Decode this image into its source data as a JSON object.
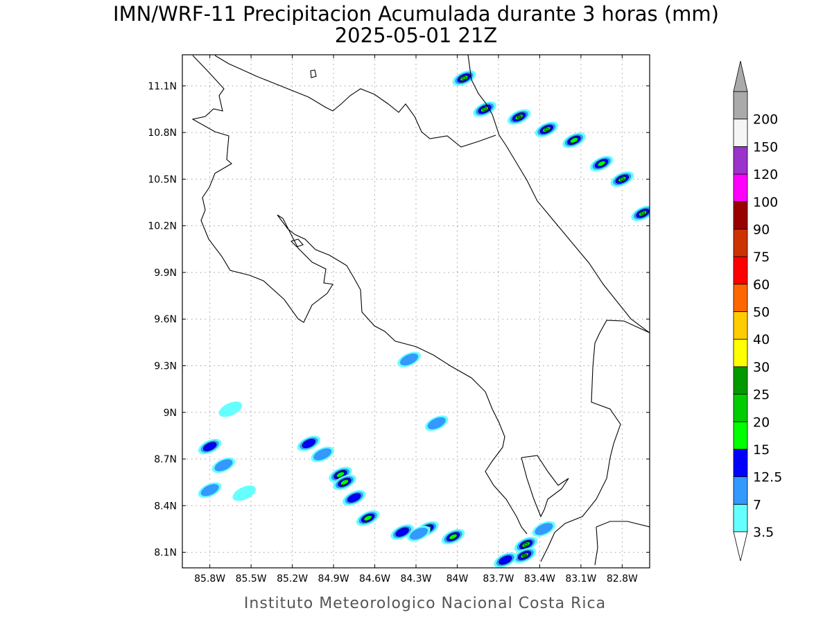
{
  "title": {
    "line1": "IMN/WRF-11 Precipitacion Acumulada durante 3 horas (mm)",
    "line2": "2025-05-01 21Z"
  },
  "footer": "Instituto Meteorologico Nacional Costa Rica",
  "map": {
    "lon_range": [
      -86.0,
      -82.6
    ],
    "lat_range": [
      8.0,
      11.3
    ],
    "lon_ticks": [
      {
        "value": -85.8,
        "label": "85.8W"
      },
      {
        "value": -85.5,
        "label": "85.5W"
      },
      {
        "value": -85.2,
        "label": "85.2W"
      },
      {
        "value": -84.9,
        "label": "84.9W"
      },
      {
        "value": -84.6,
        "label": "84.6W"
      },
      {
        "value": -84.3,
        "label": "84.3W"
      },
      {
        "value": -84.0,
        "label": "84W"
      },
      {
        "value": -83.7,
        "label": "83.7W"
      },
      {
        "value": -83.4,
        "label": "83.4W"
      },
      {
        "value": -83.1,
        "label": "83.1W"
      },
      {
        "value": -82.8,
        "label": "82.8W"
      }
    ],
    "lat_ticks": [
      {
        "value": 11.1,
        "label": "11.1N"
      },
      {
        "value": 10.8,
        "label": "10.8N"
      },
      {
        "value": 10.5,
        "label": "10.5N"
      },
      {
        "value": 10.2,
        "label": "10.2N"
      },
      {
        "value": 9.9,
        "label": "9.9N"
      },
      {
        "value": 9.6,
        "label": "9.6N"
      },
      {
        "value": 9.3,
        "label": "9.3N"
      },
      {
        "value": 9.0,
        "label": "9N"
      },
      {
        "value": 8.7,
        "label": "8.7N"
      },
      {
        "value": 8.4,
        "label": "8.4N"
      },
      {
        "value": 8.1,
        "label": "8.1N"
      }
    ],
    "grid": true
  },
  "legend": {
    "units": "mm",
    "levels": [
      {
        "label": "3.5",
        "color": "#66ffff"
      },
      {
        "label": "7",
        "color": "#3399ff"
      },
      {
        "label": "12.5",
        "color": "#0000ff"
      },
      {
        "label": "15",
        "color": "#00ff00"
      },
      {
        "label": "20",
        "color": "#00cc00"
      },
      {
        "label": "25",
        "color": "#009900"
      },
      {
        "label": "30",
        "color": "#ffff00"
      },
      {
        "label": "40",
        "color": "#ffcc00"
      },
      {
        "label": "50",
        "color": "#ff6600"
      },
      {
        "label": "60",
        "color": "#ff0000"
      },
      {
        "label": "75",
        "color": "#cc3300"
      },
      {
        "label": "90",
        "color": "#990000"
      },
      {
        "label": "100",
        "color": "#ff00ff"
      },
      {
        "label": "120",
        "color": "#9933cc"
      },
      {
        "label": "150",
        "color": "#f5f5f5"
      },
      {
        "label": "200",
        "color": "#aaaaaa"
      }
    ]
  },
  "precip_cells": [
    {
      "lon": -83.95,
      "lat": 11.15,
      "category": 4
    },
    {
      "lon": -83.8,
      "lat": 10.95,
      "category": 4
    },
    {
      "lon": -83.55,
      "lat": 10.9,
      "category": 5
    },
    {
      "lon": -83.35,
      "lat": 10.82,
      "category": 4
    },
    {
      "lon": -83.15,
      "lat": 10.75,
      "category": 3
    },
    {
      "lon": -82.95,
      "lat": 10.6,
      "category": 3
    },
    {
      "lon": -82.8,
      "lat": 10.5,
      "category": 4
    },
    {
      "lon": -82.65,
      "lat": 10.28,
      "category": 4
    },
    {
      "lon": -85.8,
      "lat": 8.78,
      "category": 2
    },
    {
      "lon": -85.7,
      "lat": 8.66,
      "category": 1
    },
    {
      "lon": -85.8,
      "lat": 8.5,
      "category": 1
    },
    {
      "lon": -85.55,
      "lat": 8.48,
      "category": 0
    },
    {
      "lon": -85.08,
      "lat": 8.8,
      "category": 2
    },
    {
      "lon": -84.98,
      "lat": 8.73,
      "category": 1
    },
    {
      "lon": -84.85,
      "lat": 8.6,
      "category": 3
    },
    {
      "lon": -84.82,
      "lat": 8.55,
      "category": 3
    },
    {
      "lon": -84.75,
      "lat": 8.45,
      "category": 2
    },
    {
      "lon": -84.65,
      "lat": 8.32,
      "category": 3
    },
    {
      "lon": -84.4,
      "lat": 8.23,
      "category": 2
    },
    {
      "lon": -84.22,
      "lat": 8.25,
      "category": 3
    },
    {
      "lon": -84.03,
      "lat": 8.2,
      "category": 3
    },
    {
      "lon": -83.5,
      "lat": 8.15,
      "category": 4
    },
    {
      "lon": -83.51,
      "lat": 8.08,
      "category": 5
    },
    {
      "lon": -83.65,
      "lat": 8.05,
      "category": 2
    },
    {
      "lon": -84.28,
      "lat": 8.22,
      "category": 1
    },
    {
      "lon": -84.15,
      "lat": 8.93,
      "category": 1
    },
    {
      "lon": -84.35,
      "lat": 9.34,
      "category": 1
    },
    {
      "lon": -83.37,
      "lat": 8.25,
      "category": 1
    },
    {
      "lon": -85.65,
      "lat": 9.02,
      "category": 0
    }
  ]
}
